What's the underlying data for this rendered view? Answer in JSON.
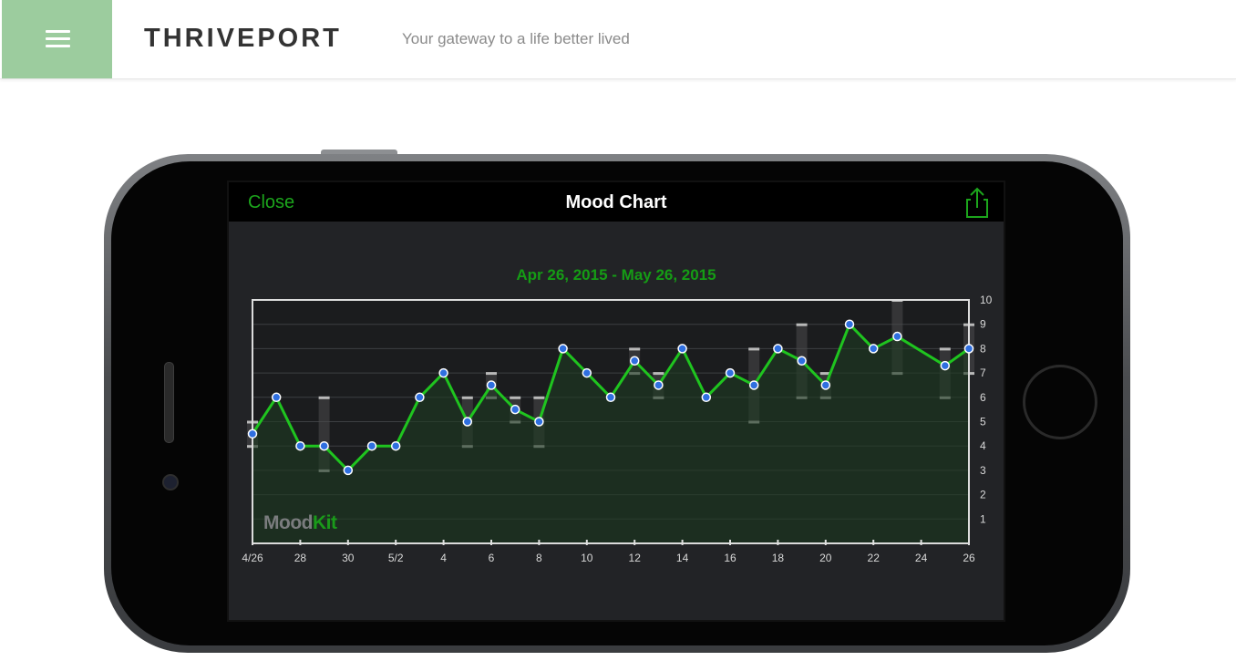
{
  "site": {
    "brand": "THRIVEPORT",
    "tagline": "Your gateway to a life better lived",
    "menu_icon": "hamburger-menu-icon"
  },
  "app": {
    "close_label": "Close",
    "title": "Mood Chart",
    "share_icon": "share-icon",
    "watermark_mood": "Mood",
    "watermark_kit": "Kit"
  },
  "colors": {
    "header_accent": "#9ccc9e",
    "line": "#1fc41f",
    "point": "#2f6fe0",
    "title_green": "#159c15"
  },
  "chart_data": {
    "type": "line",
    "title": "Apr 26, 2015 - May 26, 2015",
    "ylim": [
      0,
      10
    ],
    "y_ticks": [
      1,
      2,
      3,
      4,
      5,
      6,
      7,
      8,
      9,
      10
    ],
    "grid": true,
    "x_tick_labels": [
      {
        "day": 0,
        "label": "4/26"
      },
      {
        "day": 2,
        "label": "28"
      },
      {
        "day": 4,
        "label": "30"
      },
      {
        "day": 6,
        "label": "5/2"
      },
      {
        "day": 8,
        "label": "4"
      },
      {
        "day": 10,
        "label": "6"
      },
      {
        "day": 12,
        "label": "8"
      },
      {
        "day": 14,
        "label": "10"
      },
      {
        "day": 16,
        "label": "12"
      },
      {
        "day": 18,
        "label": "14"
      },
      {
        "day": 20,
        "label": "16"
      },
      {
        "day": 22,
        "label": "18"
      },
      {
        "day": 24,
        "label": "20"
      },
      {
        "day": 26,
        "label": "22"
      },
      {
        "day": 28,
        "label": "24"
      },
      {
        "day": 30,
        "label": "26"
      }
    ],
    "series": [
      {
        "points": [
          {
            "day": 0,
            "value": 4.5
          },
          {
            "day": 1,
            "value": 6
          },
          {
            "day": 2,
            "value": 4
          },
          {
            "day": 3,
            "value": 4
          },
          {
            "day": 4,
            "value": 3
          },
          {
            "day": 5,
            "value": 4
          },
          {
            "day": 6,
            "value": 4
          },
          {
            "day": 7,
            "value": 6
          },
          {
            "day": 8,
            "value": 7
          },
          {
            "day": 9,
            "value": 5
          },
          {
            "day": 10,
            "value": 6.5
          },
          {
            "day": 11,
            "value": 5.5
          },
          {
            "day": 12,
            "value": 5
          },
          {
            "day": 13,
            "value": 8
          },
          {
            "day": 14,
            "value": 7
          },
          {
            "day": 15,
            "value": 6
          },
          {
            "day": 16,
            "value": 7.5
          },
          {
            "day": 17,
            "value": 6.5
          },
          {
            "day": 18,
            "value": 8
          },
          {
            "day": 19,
            "value": 6
          },
          {
            "day": 20,
            "value": 7
          },
          {
            "day": 21,
            "value": 6.5
          },
          {
            "day": 22,
            "value": 8
          },
          {
            "day": 23,
            "value": 7.5
          },
          {
            "day": 24,
            "value": 6.5
          },
          {
            "day": 25,
            "value": 9
          },
          {
            "day": 26,
            "value": 8
          },
          {
            "day": 27,
            "value": 8.5
          },
          {
            "day": 29,
            "value": 7.3
          },
          {
            "day": 30,
            "value": 8
          }
        ]
      }
    ],
    "ranges": [
      {
        "day": 0,
        "min": 4,
        "max": 5
      },
      {
        "day": 3,
        "min": 3,
        "max": 6
      },
      {
        "day": 9,
        "min": 4,
        "max": 6
      },
      {
        "day": 10,
        "min": 6,
        "max": 7
      },
      {
        "day": 11,
        "min": 5,
        "max": 6
      },
      {
        "day": 12,
        "min": 4,
        "max": 6
      },
      {
        "day": 16,
        "min": 7,
        "max": 8
      },
      {
        "day": 17,
        "min": 6,
        "max": 7
      },
      {
        "day": 21,
        "min": 5,
        "max": 8
      },
      {
        "day": 23,
        "min": 6,
        "max": 9
      },
      {
        "day": 24,
        "min": 6,
        "max": 7
      },
      {
        "day": 27,
        "min": 7,
        "max": 10
      },
      {
        "day": 29,
        "min": 6,
        "max": 8
      },
      {
        "day": 30,
        "min": 7,
        "max": 9
      }
    ]
  }
}
